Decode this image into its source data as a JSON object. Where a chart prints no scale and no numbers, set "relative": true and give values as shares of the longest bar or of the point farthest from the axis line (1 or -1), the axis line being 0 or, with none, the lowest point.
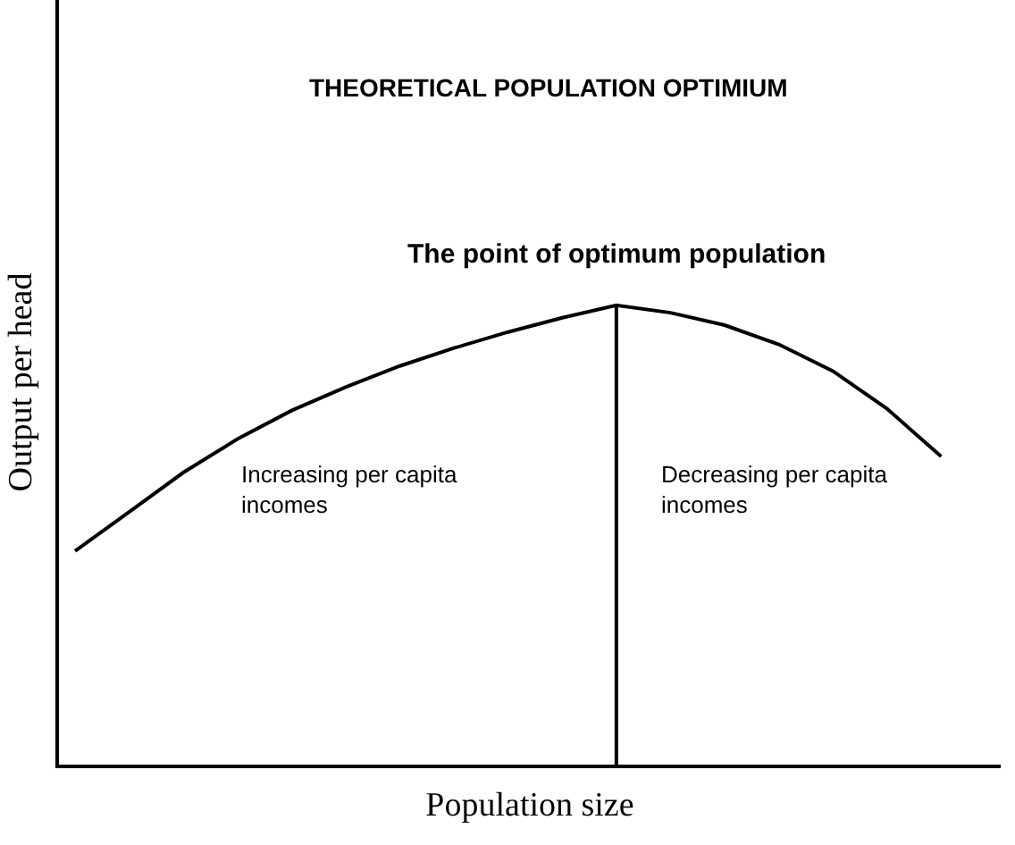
{
  "chart_data": {
    "type": "line",
    "title": "THEORETICAL POPULATION OPTIMIUM",
    "xlabel": "Population size",
    "ylabel": "Output per head",
    "relative": true,
    "color": "#000000",
    "marker": "none",
    "line_style": "solid",
    "grid": false,
    "categories": [
      null,
      null,
      null,
      null,
      null,
      null,
      null,
      null,
      null,
      null,
      null,
      null,
      null,
      null,
      null,
      null,
      null
    ],
    "values": [
      0.465,
      0.55,
      0.636,
      0.709,
      0.771,
      0.822,
      0.868,
      0.907,
      0.942,
      0.973,
      1.0,
      0.984,
      0.957,
      0.915,
      0.857,
      0.775,
      0.671
    ],
    "annotations": [
      "The point of optimum population",
      "Increasing per capita incomes",
      "Decreasing per capita incomes"
    ]
  }
}
